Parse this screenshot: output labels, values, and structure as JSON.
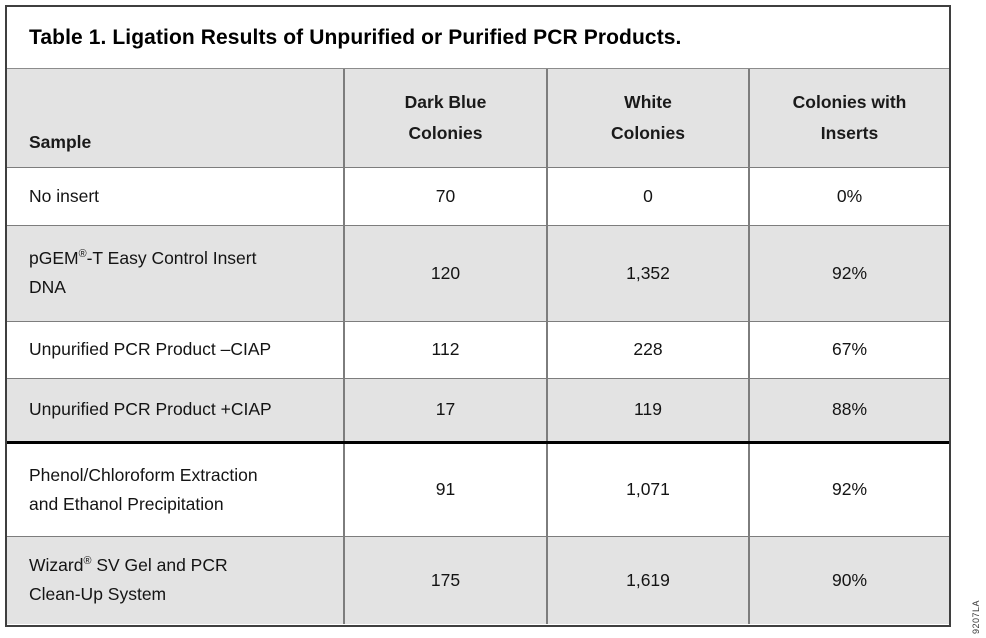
{
  "figure": {
    "title": "Table 1. Ligation Results of Unpurified or Purified PCR Products.",
    "artwork_code": "9207LA",
    "colors": {
      "header_fill": "#e3e3e3",
      "stripe_fill": "#e3e3e3",
      "grid_line": "#7d7d7d",
      "outer_border": "#3f3f3f",
      "section_divider": "#000000"
    }
  },
  "table": {
    "columns": [
      {
        "id": "sample",
        "label": "Sample"
      },
      {
        "id": "dark_blue",
        "label": "Dark Blue\nColonies"
      },
      {
        "id": "white",
        "label": "White\nColonies"
      },
      {
        "id": "inserts",
        "label": "Colonies with\nInserts"
      }
    ],
    "rows": [
      {
        "sample": "No insert",
        "dark_blue": "70",
        "white": "0",
        "inserts": "0%"
      },
      {
        "sample": "pGEM®-T Easy Control Insert\nDNA",
        "dark_blue": "120",
        "white": "1,352",
        "inserts": "92%"
      },
      {
        "sample": "Unpurified PCR Product –CIAP",
        "dark_blue": "112",
        "white": "228",
        "inserts": "67%"
      },
      {
        "sample": "Unpurified PCR Product +CIAP",
        "dark_blue": "17",
        "white": "119",
        "inserts": "88%"
      },
      {
        "sample": "Phenol/Chloroform Extraction\nand Ethanol Precipitation",
        "dark_blue": "91",
        "white": "1,071",
        "inserts": "92%"
      },
      {
        "sample": "Wizard® SV Gel and PCR\nClean-Up System",
        "dark_blue": "175",
        "white": "1,619",
        "inserts": "90%"
      }
    ]
  },
  "chart_data": {
    "type": "table",
    "title": "Table 1. Ligation Results of Unpurified or Purified PCR Products.",
    "columns": [
      "Sample",
      "Dark Blue Colonies",
      "White Colonies",
      "Colonies with Inserts"
    ],
    "rows": [
      [
        "No insert",
        70,
        0,
        "0%"
      ],
      [
        "pGEM®-T Easy Control Insert DNA",
        120,
        1352,
        "92%"
      ],
      [
        "Unpurified PCR Product –CIAP",
        112,
        228,
        "67%"
      ],
      [
        "Unpurified PCR Product +CIAP",
        17,
        119,
        "88%"
      ],
      [
        "Phenol/Chloroform Extraction and Ethanol Precipitation",
        91,
        1071,
        "92%"
      ],
      [
        "Wizard® SV Gel and PCR Clean-Up System",
        175,
        1619,
        "90%"
      ]
    ]
  }
}
